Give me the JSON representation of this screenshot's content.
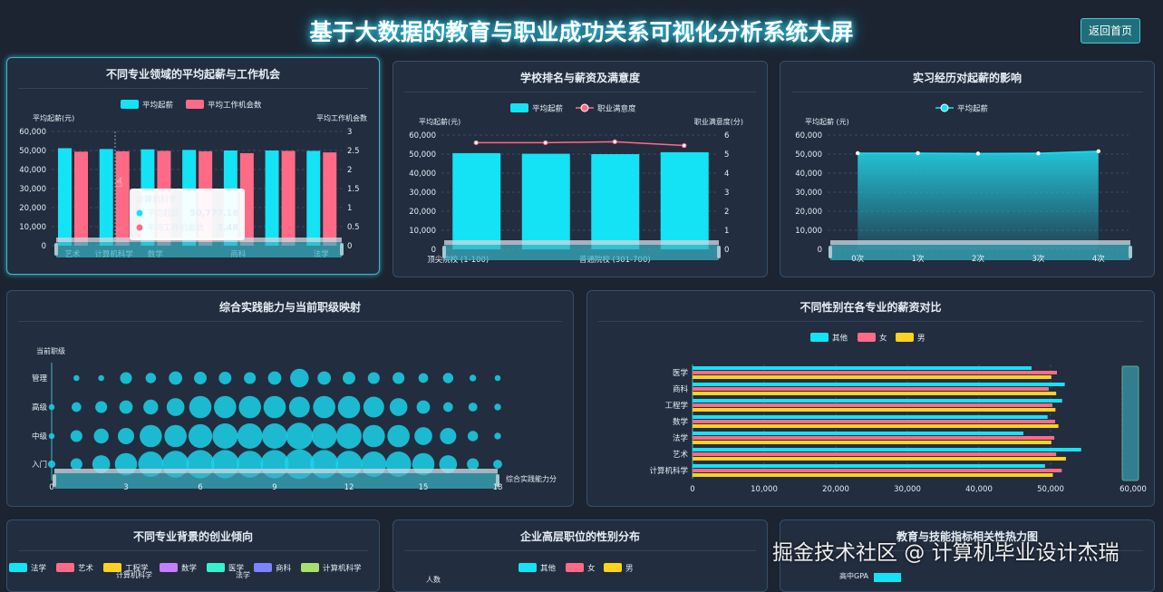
{
  "header": {
    "title": "基于大数据的教育与职业成功关系可视化分析系统大屏",
    "home_button": "返回首页"
  },
  "colors": {
    "cyan": "#13e3f5",
    "pink": "#ff6b86",
    "yellow": "#ffd21f",
    "accent": "#3fb7c8"
  },
  "watermark": "掘金技术社区 @ 计算机毕业设计杰瑞",
  "chart_data": [
    {
      "id": "major",
      "type": "bar",
      "title": "不同专业领域的平均起薪与工作机会",
      "categories": [
        "艺术",
        "计算机科学",
        "数学",
        "",
        "商科",
        "",
        "法学"
      ],
      "series": [
        {
          "name": "平均起薪",
          "axis": "left",
          "values": [
            51200,
            50777.16,
            50600,
            50300,
            50000,
            50000,
            49800
          ]
        },
        {
          "name": "平均工作机会数",
          "axis": "right",
          "values": [
            2.47,
            2.48,
            2.49,
            2.48,
            2.43,
            2.49,
            2.45
          ]
        }
      ],
      "ylabel": "平均起薪(元)",
      "y2label": "平均工作机会数",
      "ylim": [
        0,
        60000
      ],
      "y2lim": [
        0,
        3
      ],
      "yticks": [
        "0",
        "10,000",
        "20,000",
        "30,000",
        "40,000",
        "50,000",
        "60,000"
      ],
      "y2ticks": [
        "0",
        "0.5",
        "1",
        "1.5",
        "2",
        "2.5",
        "3"
      ],
      "tooltip": {
        "title": "计算机科学",
        "rows": [
          {
            "label": "平均起薪",
            "value": "50,777.16"
          },
          {
            "label": "平均工作机会数",
            "value": "2.48"
          }
        ]
      }
    },
    {
      "id": "school",
      "type": "bar+line",
      "title": "学校排名与薪资及满意度",
      "categories": [
        "顶尖院校 (1-100)",
        "",
        "普通院校 (301-700)",
        ""
      ],
      "series": [
        {
          "name": "平均起薪",
          "axis": "left",
          "values": [
            50500,
            50200,
            50000,
            51000
          ]
        },
        {
          "name": "职业满意度",
          "axis": "right",
          "values": [
            5.6,
            5.6,
            5.65,
            5.45
          ]
        }
      ],
      "ylabel": "平均起薪(元)",
      "y2label": "职业满意度(分)",
      "ylim": [
        0,
        60000
      ],
      "y2lim": [
        0,
        6
      ],
      "yticks": [
        "0",
        "10,000",
        "20,000",
        "30,000",
        "40,000",
        "50,000",
        "60,000"
      ],
      "y2ticks": [
        "0",
        "1",
        "2",
        "3",
        "4",
        "5",
        "6"
      ]
    },
    {
      "id": "intern",
      "type": "area",
      "title": "实习经历对起薪的影响",
      "categories": [
        "0次",
        "1次",
        "2次",
        "3次",
        "4次"
      ],
      "series": [
        {
          "name": "平均起薪",
          "values": [
            50500,
            50500,
            50300,
            50400,
            51500
          ]
        }
      ],
      "ylabel": "平均起薪 (元)",
      "ylim": [
        0,
        60000
      ],
      "yticks": [
        "0",
        "10,000",
        "20,000",
        "30,000",
        "40,000",
        "50,000",
        "60,000"
      ]
    },
    {
      "id": "bubble",
      "type": "scatter",
      "title": "综合实践能力与当前职级映射",
      "ylabel": "当前职级",
      "xlabel": "综合实践能力分",
      "xlim": [
        0,
        18
      ],
      "xticks": [
        "0",
        "3",
        "6",
        "9",
        "12",
        "15",
        "18"
      ],
      "levels": [
        "入门",
        "中级",
        "高级",
        "管理"
      ],
      "sizes": [
        [
          10,
          16,
          24,
          30,
          34,
          36,
          38,
          38,
          36,
          38,
          40,
          38,
          36,
          34,
          34,
          30,
          24,
          16,
          12
        ],
        [
          8,
          16,
          20,
          22,
          30,
          30,
          32,
          34,
          34,
          34,
          36,
          34,
          34,
          30,
          30,
          24,
          22,
          14,
          9
        ],
        [
          8,
          13,
          16,
          18,
          20,
          24,
          30,
          30,
          30,
          30,
          28,
          30,
          30,
          28,
          24,
          18,
          13,
          12,
          9
        ],
        [
          null,
          8,
          8,
          16,
          14,
          18,
          17,
          17,
          16,
          18,
          25,
          18,
          17,
          16,
          16,
          13,
          14,
          9,
          8
        ]
      ]
    },
    {
      "id": "gender",
      "type": "hbar",
      "title": "不同性别在各专业的薪资对比",
      "categories": [
        "计算机科学",
        "艺术",
        "法学",
        "数学",
        "工程学",
        "商科",
        "医学"
      ],
      "series": [
        {
          "name": "其他",
          "values": [
            49220,
            54270,
            46200,
            49580,
            51610,
            51980,
            47340
          ]
        },
        {
          "name": "女",
          "values": [
            51560,
            50780,
            50520,
            50630,
            50260,
            49740,
            50880
          ]
        },
        {
          "name": "男",
          "values": [
            50310,
            52140,
            50100,
            51090,
            50680,
            50780,
            50100
          ]
        }
      ],
      "xlim": [
        0,
        60000
      ],
      "xticks": [
        "0",
        "10,000",
        "20,000",
        "30,000",
        "40,000",
        "50,000",
        "60,000"
      ]
    }
  ],
  "bottom": {
    "p6": {
      "title": "不同专业背景的创业倾向",
      "legend": [
        {
          "name": "法学",
          "color": "#13e3f5"
        },
        {
          "name": "艺术",
          "color": "#ff6b86"
        },
        {
          "name": "工程学",
          "color": "#ffd21f"
        },
        {
          "name": "数学",
          "color": "#c77dff"
        },
        {
          "name": "医学",
          "color": "#36f1cd"
        },
        {
          "name": "商科",
          "color": "#7b83ff"
        },
        {
          "name": "计算机科学",
          "color": "#a8e06e"
        }
      ],
      "labels": [
        "计算机科学",
        "法学"
      ]
    },
    "p7": {
      "title": "企业高层职位的性别分布",
      "legend": [
        {
          "name": "其他",
          "color": "#13e3f5"
        },
        {
          "name": "女",
          "color": "#ff6b86"
        },
        {
          "name": "男",
          "color": "#ffd21f"
        }
      ],
      "ylabel": "人数"
    },
    "p8": {
      "title": "教育与技能指标相关性热力图",
      "row": "高中GPA"
    }
  }
}
